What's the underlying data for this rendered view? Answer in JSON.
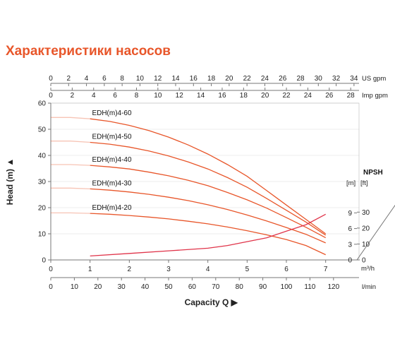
{
  "title": "Характеристики насосов",
  "colors": {
    "title": "#e8562a",
    "curve": "#e8562a",
    "npsh": "#e0344a",
    "axis": "#777777",
    "grid": "#eeeeee"
  },
  "chart_data": {
    "type": "line",
    "title": "Характеристики насосов",
    "xlabel": "Capacity Q",
    "ylabel": "Head (m)",
    "y2label": "NPSH",
    "x_unit": "m³/h",
    "xlim": [
      0,
      8
    ],
    "ylim": [
      0,
      60
    ],
    "y_ticks": [
      0,
      10,
      20,
      30,
      40,
      50,
      60
    ],
    "x_ticks": [
      0,
      1,
      2,
      3,
      4,
      5,
      6,
      7
    ],
    "axes_extra": {
      "us_gpm": {
        "label": "US gpm",
        "ticks": [
          0,
          2,
          4,
          6,
          8,
          10,
          12,
          14,
          16,
          18,
          20,
          22,
          24,
          26,
          28,
          30,
          32,
          34
        ],
        "per_m3h": 4.403
      },
      "imp_gpm": {
        "label": "Imp gpm",
        "ticks": [
          0,
          2,
          4,
          6,
          8,
          10,
          12,
          14,
          16,
          18,
          20,
          22,
          24,
          26,
          28
        ],
        "per_m3h": 3.666
      },
      "lmin": {
        "label": "l/min",
        "ticks": [
          0,
          10,
          20,
          30,
          40,
          50,
          60,
          70,
          80,
          90,
          100,
          110,
          120
        ],
        "per_m3h": 16.667
      },
      "npsh_m": {
        "label": "[m]",
        "ticks": [
          0,
          3,
          6,
          9
        ],
        "per_m_head": 0.5
      },
      "npsh_ft": {
        "label": "[ft]",
        "ticks": [
          0,
          10,
          20,
          30
        ],
        "per_m_head": 1.64
      }
    },
    "x": [
      0,
      0.5,
      1,
      1.5,
      2,
      2.5,
      3,
      3.5,
      4,
      4.5,
      5,
      5.5,
      6,
      6.5,
      7
    ],
    "series": [
      {
        "name": "EDH(m)4-60",
        "values": [
          54.5,
          54.5,
          54,
          53,
          51.5,
          49.5,
          47,
          44,
          40.5,
          36.5,
          32,
          26.5,
          21,
          15.5,
          10
        ]
      },
      {
        "name": "EDH(m)4-50",
        "values": [
          45.5,
          45.5,
          45,
          44.3,
          43.2,
          41.7,
          39.8,
          37.5,
          34.8,
          31.5,
          27.8,
          23.5,
          19,
          14.5,
          9.5
        ]
      },
      {
        "name": "EDH(m)4-40",
        "values": [
          36.5,
          36.5,
          36.2,
          35.6,
          34.8,
          33.6,
          32.2,
          30.5,
          28.4,
          25.8,
          23,
          19.8,
          16.2,
          12.5,
          8.5
        ]
      },
      {
        "name": "EDH(m)4-30",
        "values": [
          27.5,
          27.5,
          27.2,
          26.7,
          26,
          25.1,
          24,
          22.7,
          21.1,
          19.3,
          17.2,
          14.9,
          12.4,
          9.8,
          6.5
        ]
      },
      {
        "name": "EDH(m)4-20",
        "values": [
          18,
          18,
          17.8,
          17.5,
          17,
          16.4,
          15.7,
          14.8,
          13.8,
          12.6,
          11.2,
          9.6,
          7.8,
          5.5,
          2
        ]
      }
    ],
    "npsh": {
      "x": [
        1,
        2,
        3,
        4,
        4.5,
        5,
        5.5,
        6,
        6.5,
        7
      ],
      "values_head_scale": [
        1.5,
        2.5,
        3.5,
        4.5,
        5.5,
        7,
        8.5,
        11,
        13.5,
        17.5
      ]
    }
  }
}
